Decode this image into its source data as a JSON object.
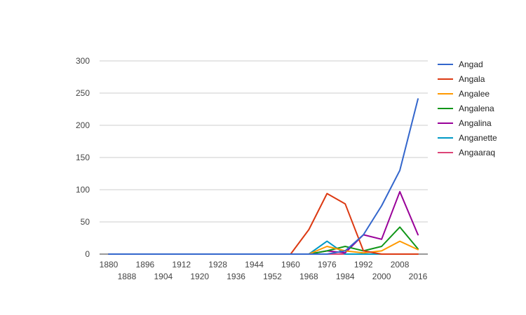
{
  "chart_data": {
    "type": "line",
    "title": "",
    "xlabel": "",
    "ylabel": "",
    "ylim": [
      0,
      300
    ],
    "yticks": [
      0,
      50,
      100,
      150,
      200,
      250,
      300
    ],
    "grid": true,
    "legend_position": "right",
    "x": [
      1880,
      1888,
      1896,
      1904,
      1912,
      1920,
      1928,
      1936,
      1944,
      1952,
      1960,
      1968,
      1976,
      1984,
      1992,
      2000,
      2008,
      2016
    ],
    "xticks_upper": [
      "1880",
      "1896",
      "1912",
      "1928",
      "1944",
      "1960",
      "1976",
      "1992",
      "2008"
    ],
    "xticks_lower": [
      "1888",
      "1904",
      "1920",
      "1936",
      "1952",
      "1968",
      "1984",
      "2000",
      "2016"
    ],
    "series": [
      {
        "name": "Angad",
        "color": "#3366cc",
        "values": [
          0,
          0,
          0,
          0,
          0,
          0,
          0,
          0,
          0,
          0,
          0,
          0,
          0,
          5,
          30,
          75,
          130,
          241
        ]
      },
      {
        "name": "Angala",
        "color": "#dc3912",
        "values": [
          0,
          0,
          0,
          0,
          0,
          0,
          0,
          0,
          0,
          0,
          0,
          38,
          94,
          78,
          5,
          0,
          0,
          0
        ]
      },
      {
        "name": "Angalee",
        "color": "#ff9900",
        "values": [
          0,
          0,
          0,
          0,
          0,
          0,
          0,
          0,
          0,
          0,
          0,
          0,
          12,
          5,
          2,
          5,
          20,
          7
        ]
      },
      {
        "name": "Angalena",
        "color": "#109618",
        "values": [
          0,
          0,
          0,
          0,
          0,
          0,
          0,
          0,
          0,
          0,
          0,
          0,
          5,
          12,
          5,
          12,
          42,
          8
        ]
      },
      {
        "name": "Angalina",
        "color": "#990099",
        "values": [
          0,
          0,
          0,
          0,
          0,
          0,
          0,
          0,
          0,
          0,
          0,
          0,
          5,
          2,
          30,
          23,
          97,
          30
        ]
      },
      {
        "name": "Anganette",
        "color": "#0099c6",
        "values": [
          0,
          0,
          0,
          0,
          0,
          0,
          0,
          0,
          0,
          0,
          0,
          0,
          20,
          0,
          0,
          0,
          0,
          0
        ]
      },
      {
        "name": "Angaaraq",
        "color": "#dd4477",
        "values": [
          0,
          0,
          0,
          0,
          0,
          0,
          0,
          0,
          0,
          0,
          0,
          0,
          0,
          0,
          0,
          0,
          0,
          0
        ]
      }
    ]
  }
}
